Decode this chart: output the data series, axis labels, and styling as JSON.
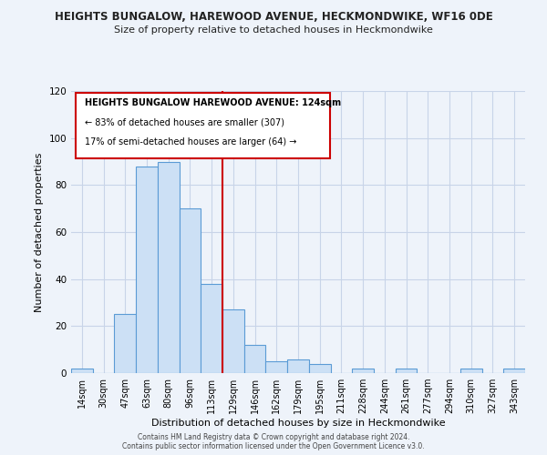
{
  "title": "HEIGHTS BUNGALOW, HAREWOOD AVENUE, HECKMONDWIKE, WF16 0DE",
  "subtitle": "Size of property relative to detached houses in Heckmondwike",
  "xlabel": "Distribution of detached houses by size in Heckmondwike",
  "ylabel": "Number of detached properties",
  "bin_labels": [
    "14sqm",
    "30sqm",
    "47sqm",
    "63sqm",
    "80sqm",
    "96sqm",
    "113sqm",
    "129sqm",
    "146sqm",
    "162sqm",
    "179sqm",
    "195sqm",
    "211sqm",
    "228sqm",
    "244sqm",
    "261sqm",
    "277sqm",
    "294sqm",
    "310sqm",
    "327sqm",
    "343sqm"
  ],
  "bar_heights": [
    2,
    0,
    25,
    88,
    90,
    70,
    38,
    27,
    12,
    5,
    6,
    4,
    0,
    2,
    0,
    2,
    0,
    0,
    2,
    0,
    2
  ],
  "bar_color": "#cce0f5",
  "bar_edge_color": "#5b9bd5",
  "vline_color": "#cc0000",
  "ylim": [
    0,
    120
  ],
  "yticks": [
    0,
    20,
    40,
    60,
    80,
    100,
    120
  ],
  "annotation_title": "HEIGHTS BUNGALOW HAREWOOD AVENUE: 124sqm",
  "annotation_line1": "← 83% of detached houses are smaller (307)",
  "annotation_line2": "17% of semi-detached houses are larger (64) →",
  "annotation_box_color": "#ffffff",
  "annotation_box_edge": "#cc0000",
  "footer1": "Contains HM Land Registry data © Crown copyright and database right 2024.",
  "footer2": "Contains public sector information licensed under the Open Government Licence v3.0.",
  "background_color": "#eef3fa",
  "grid_color": "#c8d4e8"
}
